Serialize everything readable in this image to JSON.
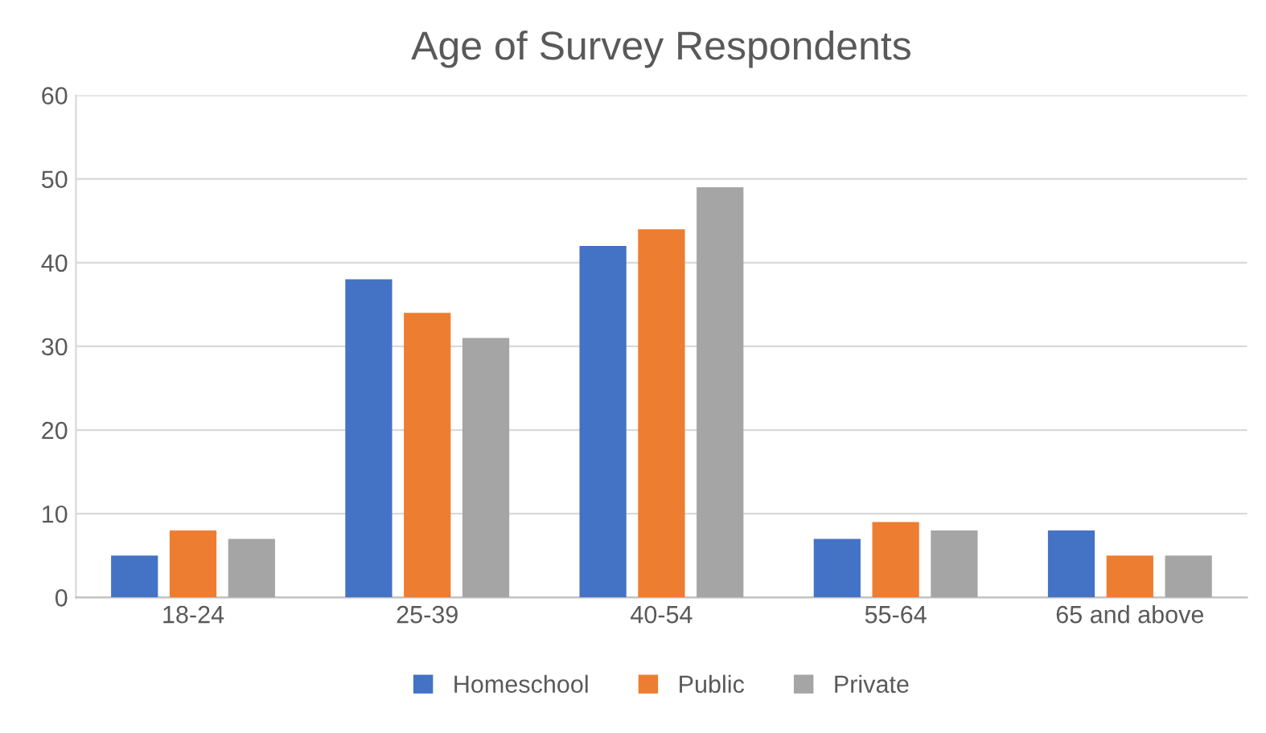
{
  "chart_data": {
    "type": "bar",
    "title": "Age of Survey Respondents",
    "categories": [
      "18-24",
      "25-39",
      "40-54",
      "55-64",
      "65 and above"
    ],
    "series": [
      {
        "name": "Homeschool",
        "color": "#4472c4",
        "values": [
          5,
          38,
          42,
          7,
          8
        ]
      },
      {
        "name": "Public",
        "color": "#ed7d31",
        "values": [
          8,
          34,
          44,
          9,
          5
        ]
      },
      {
        "name": "Private",
        "color": "#a5a5a5",
        "values": [
          7,
          31,
          49,
          8,
          5
        ]
      }
    ],
    "ylim": [
      0,
      60
    ],
    "yticks": [
      0,
      10,
      20,
      30,
      40,
      50,
      60
    ],
    "grid": "y",
    "legend": "bottom"
  }
}
